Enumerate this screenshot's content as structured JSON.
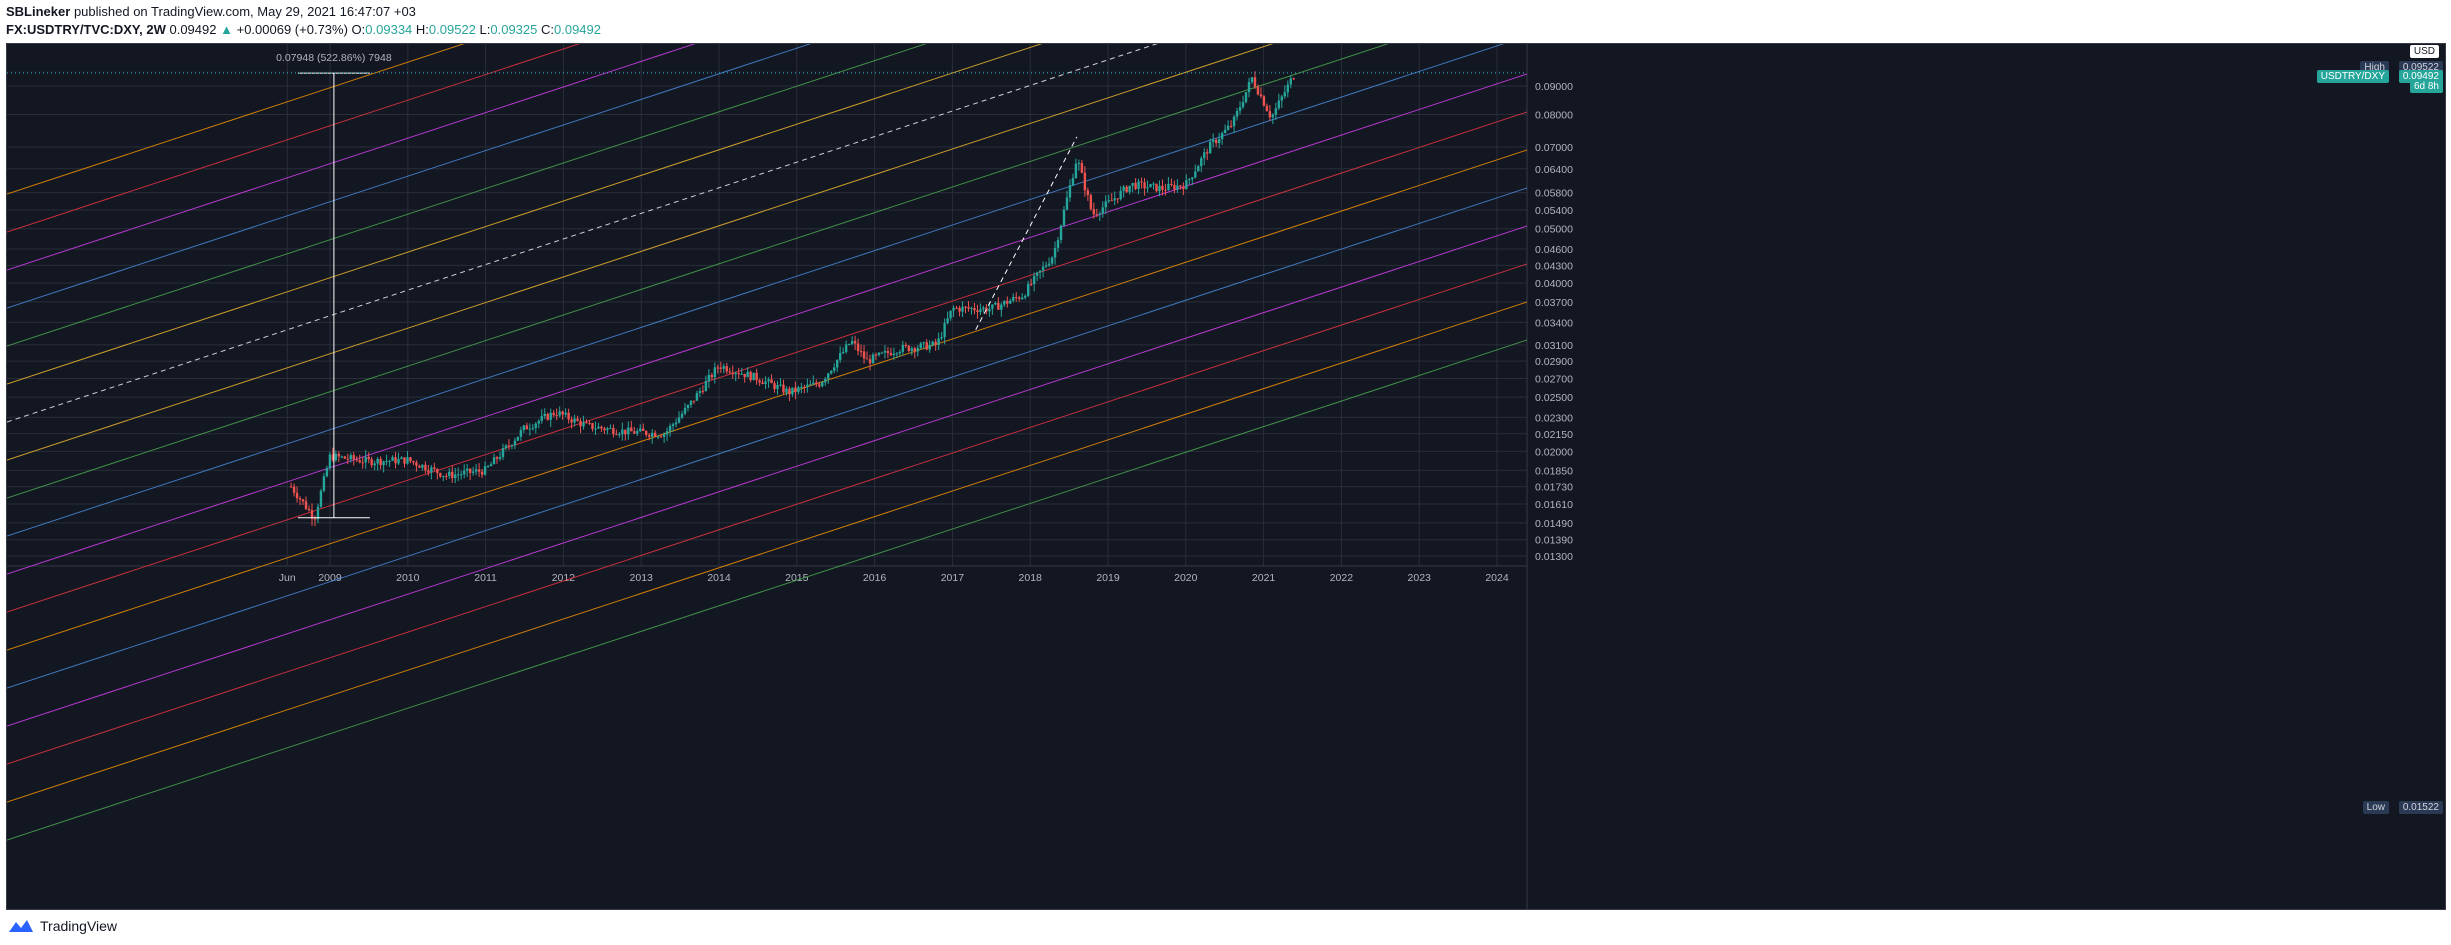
{
  "header": {
    "author": "SBLineker",
    "published": "published on TradingView.com, May 29, 2021 16:47:07 +03"
  },
  "symbol": {
    "name": "FX:USDTRY/TVC:DXY, 2W",
    "last": "0.09492",
    "change": "+0.00069 (+0.73%)",
    "o_label": "O:",
    "o_value": "0.09334",
    "h_label": "H:",
    "h_value": "0.09522",
    "l_label": "L:",
    "l_value": "0.09325",
    "c_label": "C:",
    "c_value": "0.09492"
  },
  "chart": {
    "currency": "USD",
    "scale": "log",
    "colors": {
      "up": "#26a69a",
      "down": "#ef5350",
      "bg": "#131722",
      "grid": "#2a2e39",
      "text": "#b2b5be"
    },
    "price_ticks": [
      "0.09000",
      "0.08000",
      "0.07000",
      "0.06400",
      "0.05800",
      "0.05400",
      "0.05000",
      "0.04600",
      "0.04300",
      "0.04000",
      "0.03700",
      "0.03400",
      "0.03100",
      "0.02900",
      "0.02700",
      "0.02500",
      "0.02300",
      "0.02150",
      "0.02000",
      "0.01850",
      "0.01730",
      "0.01610",
      "0.01490",
      "0.01390",
      "0.01300"
    ],
    "time_ticks": [
      "Jun",
      "2009",
      "2010",
      "2011",
      "2012",
      "2013",
      "2014",
      "2015",
      "2016",
      "2017",
      "2018",
      "2019",
      "2020",
      "2021",
      "2022",
      "2023",
      "2024"
    ],
    "high_label": "High",
    "high_value": "0.09522",
    "low_label": "Low",
    "low_value": "0.01522",
    "last_label": "USDTRY/DXY",
    "last_value": "0.09492",
    "countdown": "6d 8h",
    "measure_text": "0.07948 (522.86%) 7948",
    "channel_line_colors": [
      "#ff9800",
      "#f23645",
      "#e040fb",
      "#4a90e2",
      "#4caf50",
      "#fbc02d",
      "#ffffff",
      "#fbc02d",
      "#4caf50",
      "#4a90e2",
      "#e040fb",
      "#f23645",
      "#ff9800",
      "#4a90e2",
      "#e040fb",
      "#f23645",
      "#ff9800",
      "#4caf50"
    ],
    "chart_data": {
      "type": "line",
      "title": "FX:USDTRY/TVC:DXY, 2W",
      "x": [
        2008.5,
        2008.8,
        2009.0,
        2009.5,
        2010.0,
        2010.5,
        2011.0,
        2011.5,
        2011.9,
        2012.3,
        2012.8,
        2013.3,
        2013.6,
        2014.0,
        2014.5,
        2014.9,
        2015.3,
        2015.7,
        2015.9,
        2016.3,
        2016.8,
        2017.0,
        2017.5,
        2017.9,
        2018.3,
        2018.6,
        2018.8,
        2019.0,
        2019.3,
        2019.7,
        2020.0,
        2020.3,
        2020.6,
        2020.85,
        2021.1,
        2021.4
      ],
      "y": [
        0.0173,
        0.0152,
        0.0196,
        0.0192,
        0.0193,
        0.0181,
        0.0185,
        0.022,
        0.0235,
        0.0222,
        0.0217,
        0.0215,
        0.024,
        0.0285,
        0.027,
        0.0255,
        0.0265,
        0.0315,
        0.029,
        0.0305,
        0.031,
        0.036,
        0.036,
        0.038,
        0.045,
        0.067,
        0.053,
        0.0555,
        0.06,
        0.059,
        0.06,
        0.07,
        0.077,
        0.093,
        0.079,
        0.0949
      ],
      "ylim": [
        0.0128,
        0.0978
      ]
    }
  },
  "footer": {
    "brand": "TradingView"
  }
}
